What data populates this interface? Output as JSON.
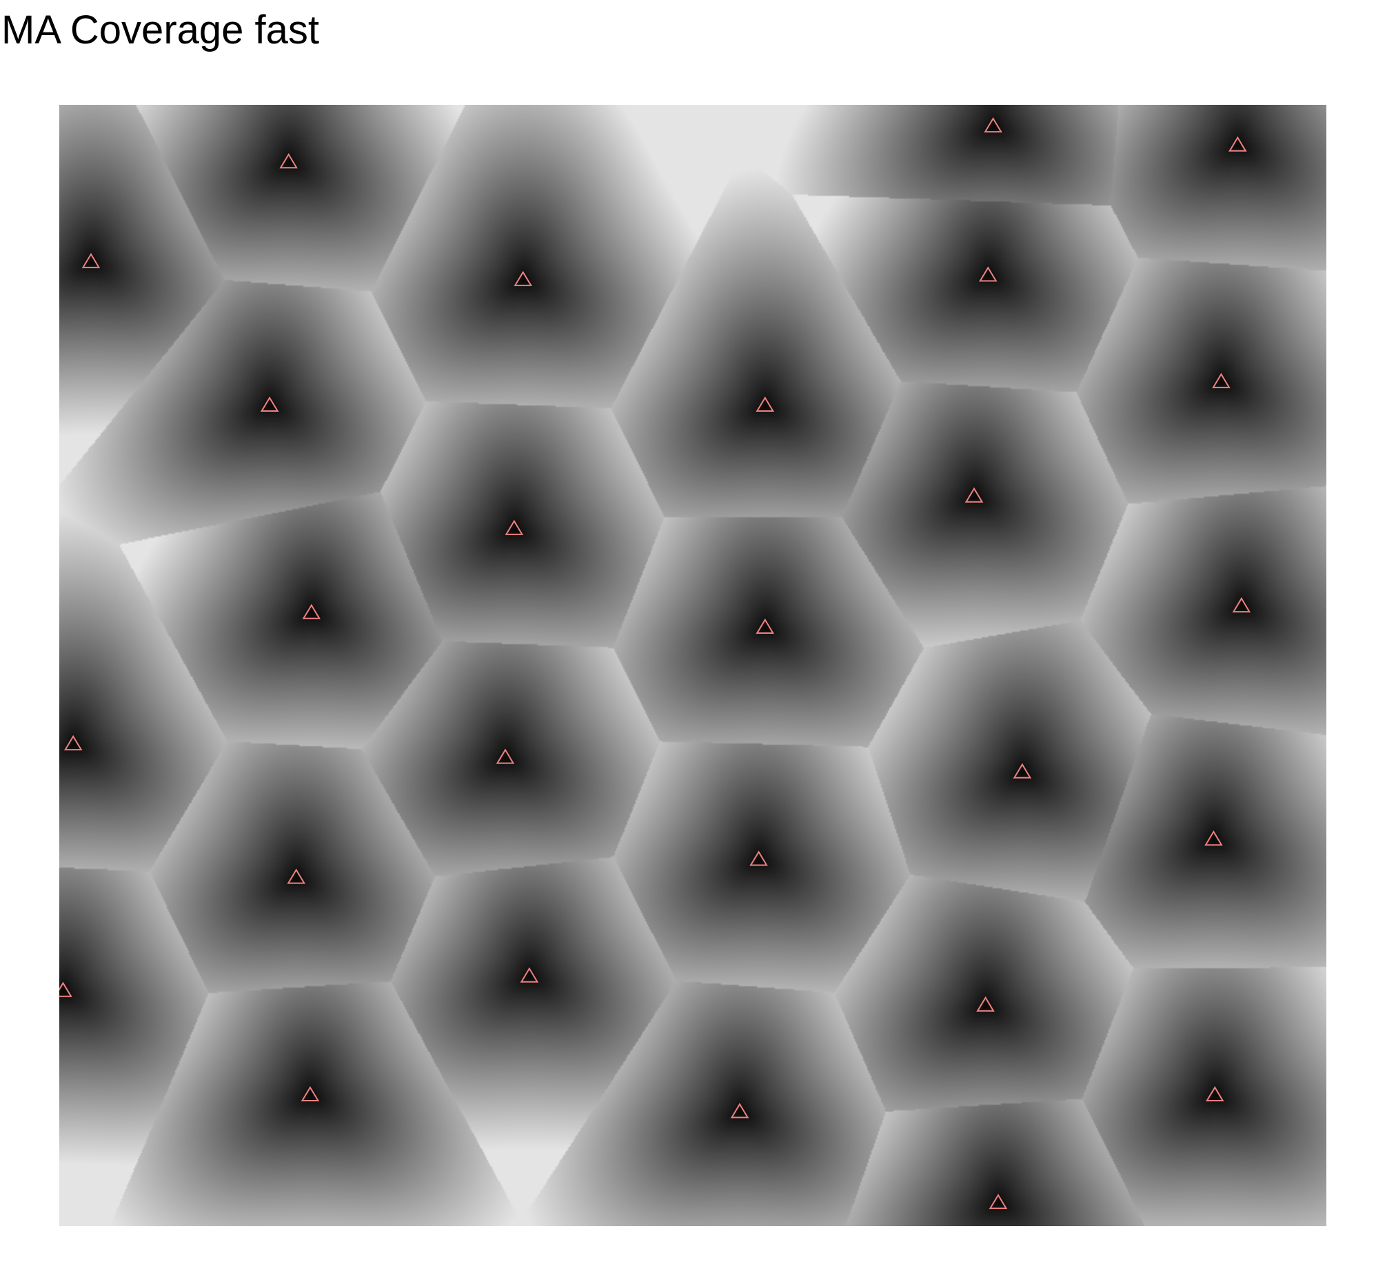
{
  "title": "MA Coverage fast",
  "chart_data": {
    "type": "scatter",
    "title": "MA Coverage fast",
    "xlabel": "",
    "ylabel": "",
    "grid": false,
    "legend": "none",
    "background": "grayscale coverage field (dark near each site, light at Voronoi boundaries)",
    "marker": "open triangle",
    "marker_color": "#f08080",
    "xlim": [
      0,
      1
    ],
    "ylim": [
      0,
      1
    ],
    "series": [
      {
        "x": [
          0.181,
          0.737,
          0.93,
          0.025,
          0.366,
          0.733,
          0.166,
          0.557,
          0.917,
          0.359,
          0.722,
          0.199,
          0.557,
          0.933,
          0.011,
          0.352,
          0.76,
          0.187,
          0.552,
          0.911,
          0.003,
          0.371,
          0.731,
          0.198,
          0.537,
          0.912,
          0.741
        ],
        "y": [
          0.949,
          0.981,
          0.964,
          0.86,
          0.844,
          0.848,
          0.732,
          0.732,
          0.753,
          0.622,
          0.651,
          0.547,
          0.534,
          0.553,
          0.43,
          0.418,
          0.405,
          0.311,
          0.327,
          0.345,
          0.21,
          0.223,
          0.197,
          0.117,
          0.102,
          0.117,
          0.021
        ]
      }
    ]
  }
}
